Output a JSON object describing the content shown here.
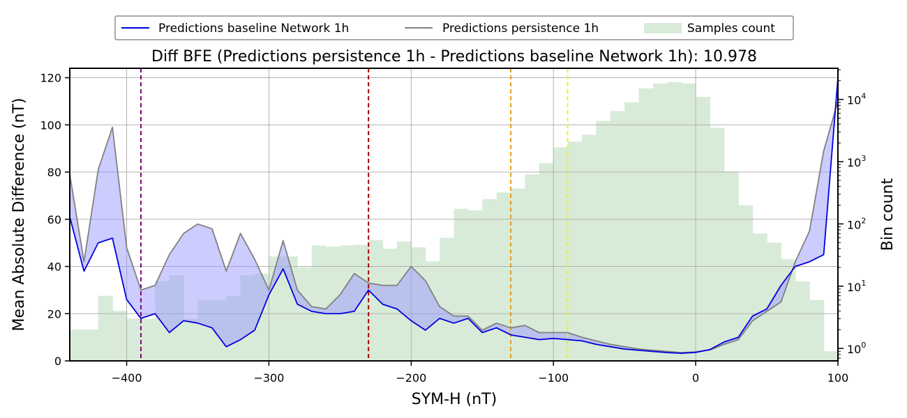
{
  "chart_data": {
    "type": "line",
    "title": "Diff BFE (Predictions persistence 1h - Predictions baseline Network 1h): 10.978",
    "xlabel": "SYM-H (nT)",
    "ylabel": "Mean Absolute Difference (nT)",
    "y2label": "Bin count",
    "xlim": [
      -440,
      100
    ],
    "ylim": [
      0,
      124
    ],
    "y2lim_log10": [
      -0.2,
      4.5
    ],
    "y2scale": "log",
    "grid": true,
    "legend_position": "top-center, above plot",
    "x_ticks": [
      -400,
      -300,
      -200,
      -100,
      0,
      100
    ],
    "x_tick_labels": [
      "−400",
      "−300",
      "−200",
      "−100",
      "0",
      "100"
    ],
    "y_ticks": [
      0,
      20,
      40,
      60,
      80,
      100,
      120
    ],
    "y_tick_labels": [
      "0",
      "20",
      "40",
      "60",
      "80",
      "100",
      "120"
    ],
    "y2_ticks": [
      0,
      1,
      2,
      3,
      4
    ],
    "y2_tick_labels": [
      {
        "base": "10",
        "exp": "0"
      },
      {
        "base": "10",
        "exp": "1"
      },
      {
        "base": "10",
        "exp": "2"
      },
      {
        "base": "10",
        "exp": "3"
      },
      {
        "base": "10",
        "exp": "4"
      }
    ],
    "legend": [
      {
        "label": "Predictions baseline Network 1h",
        "kind": "line",
        "color": "#0000dd"
      },
      {
        "label": "Predictions persistence 1h",
        "kind": "line",
        "color": "#808080"
      },
      {
        "label": "Samples count",
        "kind": "patch",
        "color": "#d8ebd8"
      }
    ],
    "x": [
      -440,
      -430,
      -420,
      -410,
      -400,
      -390,
      -380,
      -370,
      -360,
      -350,
      -340,
      -330,
      -320,
      -310,
      -300,
      -290,
      -280,
      -270,
      -260,
      -250,
      -240,
      -230,
      -220,
      -210,
      -200,
      -190,
      -180,
      -170,
      -160,
      -150,
      -140,
      -130,
      -120,
      -110,
      -100,
      -90,
      -80,
      -70,
      -60,
      -50,
      -40,
      -30,
      -20,
      -10,
      0,
      10,
      20,
      30,
      40,
      50,
      60,
      70,
      80,
      90,
      100
    ],
    "series": [
      {
        "name": "Predictions baseline Network 1h",
        "color": "#0000dd",
        "values": [
          61,
          38,
          50,
          52,
          26,
          18,
          20,
          12,
          17,
          16,
          14,
          6,
          9,
          13,
          28,
          39,
          24,
          21,
          20,
          20,
          21,
          30,
          24,
          22,
          17,
          13,
          18,
          16,
          18,
          12,
          14,
          11,
          10,
          9,
          9.5,
          9,
          8.5,
          7,
          6,
          5,
          4.5,
          4,
          3.5,
          3.2,
          3.6,
          4.8,
          8,
          10,
          19,
          22,
          32,
          40,
          42,
          45,
          120
        ]
      },
      {
        "name": "Predictions persistence 1h",
        "color": "#808080",
        "values": [
          79,
          42,
          81,
          99,
          48,
          30,
          32,
          45,
          54,
          58,
          56,
          38,
          54,
          43,
          30,
          51,
          30,
          23,
          22,
          28,
          37,
          33,
          32,
          32,
          40,
          34,
          23,
          19,
          19,
          13,
          16,
          14,
          15,
          12,
          12,
          12,
          10,
          8.5,
          7,
          6,
          5,
          4.5,
          4,
          3.5,
          3.8,
          4.6,
          7,
          9,
          17,
          21,
          25,
          42,
          55,
          89,
          110
        ]
      }
    ],
    "fill_between": {
      "color": "#9999ff",
      "opacity": 0.5
    },
    "histogram": {
      "name": "Samples count",
      "color": "#d8ebd8",
      "bin_width": 10,
      "bin_starts": [
        -440,
        -430,
        -420,
        -410,
        -400,
        -390,
        -380,
        -370,
        -360,
        -350,
        -340,
        -330,
        -320,
        -310,
        -300,
        -290,
        -280,
        -270,
        -260,
        -250,
        -240,
        -230,
        -220,
        -210,
        -200,
        -190,
        -180,
        -170,
        -160,
        -150,
        -140,
        -130,
        -120,
        -110,
        -100,
        -90,
        -80,
        -70,
        -60,
        -50,
        -40,
        -30,
        -20,
        -10,
        0,
        10,
        20,
        30,
        40,
        50,
        60,
        70,
        80,
        90
      ],
      "counts": [
        2,
        2,
        7,
        4,
        3,
        3,
        12,
        15,
        3,
        6,
        6,
        7,
        15,
        16,
        30,
        30,
        20,
        45,
        43,
        45,
        46,
        55,
        40,
        52,
        42,
        25,
        60,
        175,
        165,
        250,
        320,
        370,
        620,
        950,
        1700,
        2100,
        2700,
        4500,
        6500,
        9000,
        15000,
        18000,
        19000,
        18000,
        11000,
        3500,
        700,
        200,
        70,
        50,
        27,
        12,
        6,
        0.9
      ]
    },
    "vlines": [
      {
        "x": -390,
        "color": "#800080"
      },
      {
        "x": -230,
        "color": "#aa0000"
      },
      {
        "x": -130,
        "color": "#e0a020"
      },
      {
        "x": -90,
        "color": "#f0f020"
      }
    ]
  }
}
